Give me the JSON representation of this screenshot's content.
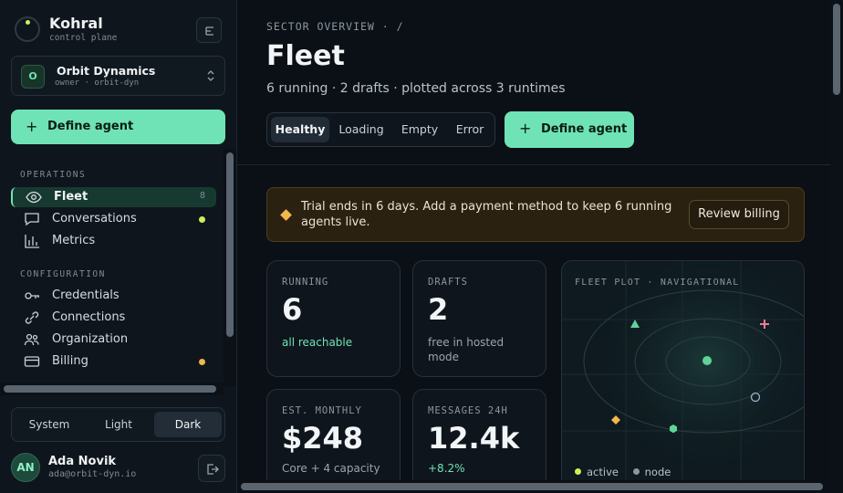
{
  "brand": {
    "name": "Kohral",
    "subtitle": "control plane"
  },
  "org": {
    "initial": "O",
    "name": "Orbit Dynamics",
    "meta": "owner · orbit-dyn"
  },
  "sidebar": {
    "define_label": "Define agent",
    "sections": [
      {
        "label": "OPERATIONS"
      },
      {
        "label": "CONFIGURATION"
      }
    ],
    "items": [
      {
        "label": "Fleet",
        "count": "8",
        "icon": "eye-icon",
        "active": true
      },
      {
        "label": "Conversations",
        "icon": "chat-icon",
        "dot": "#c9f25a"
      },
      {
        "label": "Metrics",
        "icon": "bar-chart-icon"
      },
      {
        "label": "Credentials",
        "icon": "key-icon"
      },
      {
        "label": "Connections",
        "icon": "link-icon"
      },
      {
        "label": "Organization",
        "icon": "users-icon"
      },
      {
        "label": "Billing",
        "icon": "card-icon",
        "dot": "#f2b84b"
      }
    ]
  },
  "theme": {
    "options": [
      "System",
      "Light",
      "Dark"
    ],
    "selected": "Dark"
  },
  "user": {
    "initials": "AN",
    "name": "Ada Novik",
    "email": "ada@orbit-dyn.io"
  },
  "header": {
    "breadcrumb": "SECTOR OVERVIEW · /",
    "title": "Fleet",
    "subtitle": "6 running · 2 drafts · plotted across 3 runtimes"
  },
  "states": {
    "options": [
      "Healthy",
      "Loading",
      "Empty",
      "Error"
    ],
    "selected": "Healthy"
  },
  "define_label": "Define agent",
  "banner": {
    "text": "Trial ends in 6 days. Add a payment method to keep 6 running agents live.",
    "button": "Review billing"
  },
  "stats": [
    {
      "label": "RUNNING",
      "value": "6",
      "note": "all reachable",
      "accent": true
    },
    {
      "label": "DRAFTS",
      "value": "2",
      "note": "free in hosted mode"
    },
    {
      "label": "EST. MONTHLY",
      "value": "$248",
      "note": "Core + 4 capacity"
    },
    {
      "label": "MESSAGES 24H",
      "value": "12.4k",
      "note": "+8.2%",
      "accent": true
    }
  ],
  "plot": {
    "title": "FLEET PLOT · NAVIGATIONAL",
    "legend": [
      {
        "label": "active",
        "color": "#c9f25a"
      },
      {
        "label": "node",
        "color": "#8a96a1"
      }
    ]
  },
  "colors": {
    "accent": "#6fe3b6",
    "warning": "#f2b84b",
    "lime": "#c9f25a",
    "pink": "#f27a9a"
  }
}
